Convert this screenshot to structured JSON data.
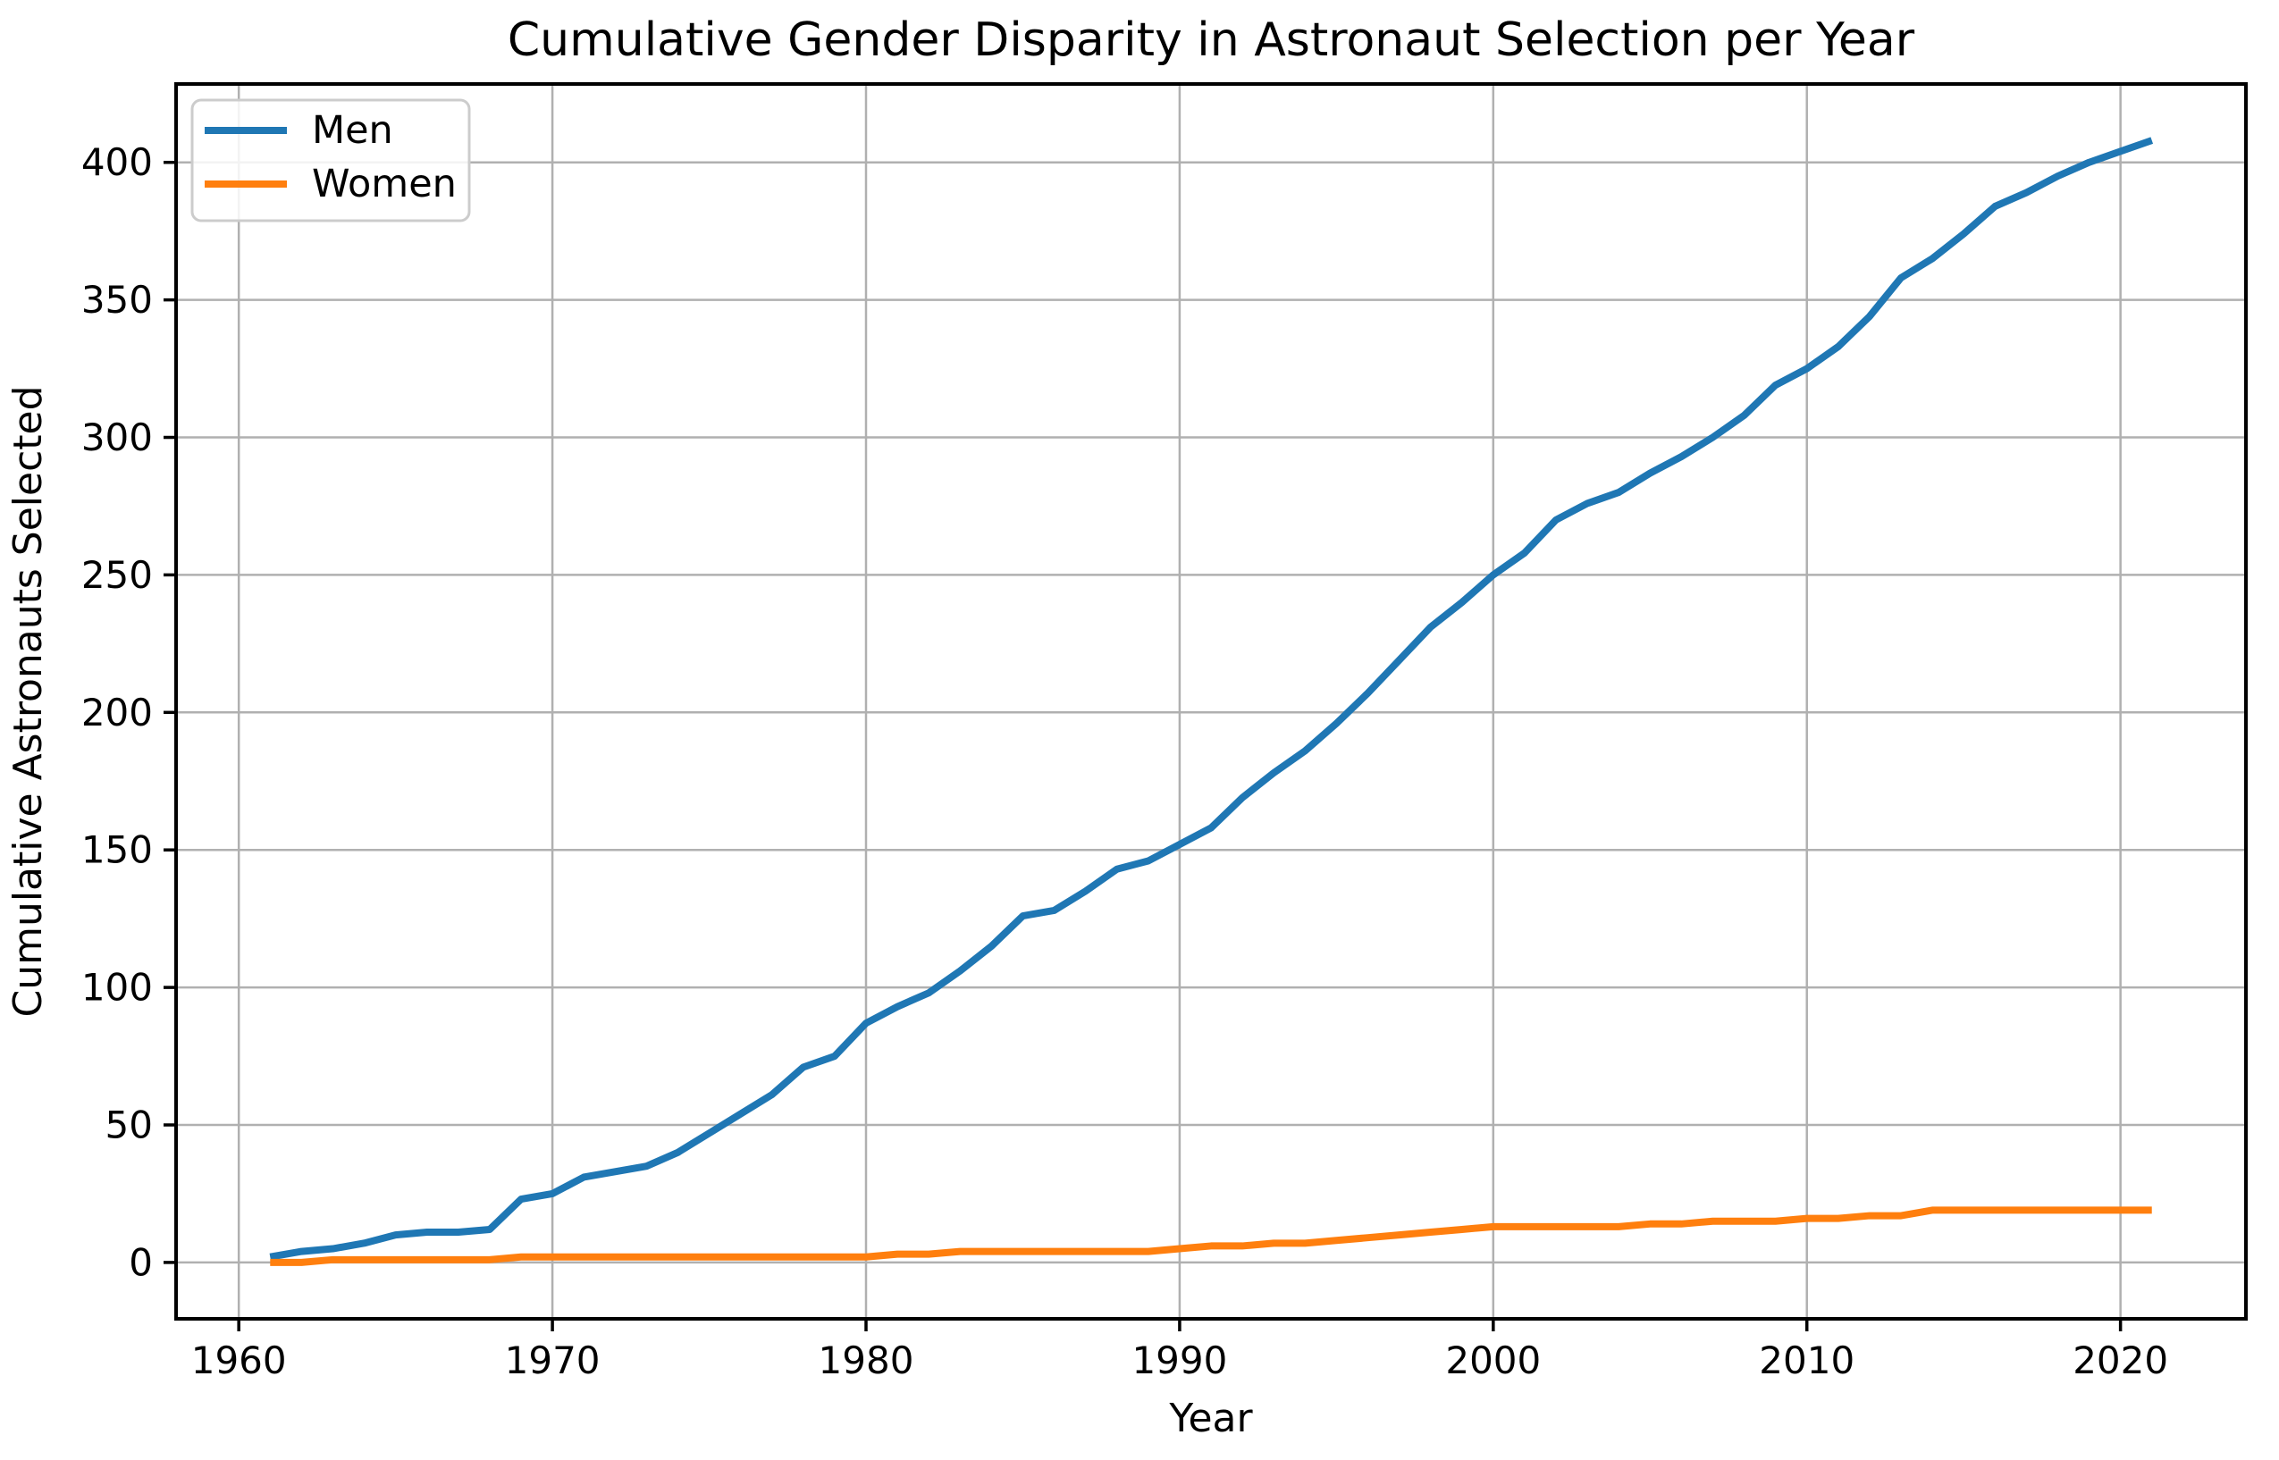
{
  "chart_data": {
    "type": "line",
    "title": "Cumulative Gender Disparity in Astronaut Selection per Year",
    "xlabel": "Year",
    "ylabel": "Cumulative Astronauts Selected",
    "grid": true,
    "grid_color": "#b0b0b0",
    "spine_color": "#000000",
    "background": "#ffffff",
    "legend_position": "upper left",
    "xlim": [
      1958,
      2024
    ],
    "ylim": [
      -20.5,
      428.5
    ],
    "xticks": [
      1960,
      1970,
      1980,
      1990,
      2000,
      2010,
      2020
    ],
    "yticks": [
      0,
      50,
      100,
      150,
      200,
      250,
      300,
      350,
      400
    ],
    "x": [
      1961,
      1962,
      1963,
      1964,
      1965,
      1966,
      1967,
      1968,
      1969,
      1970,
      1971,
      1972,
      1973,
      1974,
      1975,
      1976,
      1977,
      1978,
      1979,
      1980,
      1981,
      1982,
      1983,
      1984,
      1985,
      1986,
      1987,
      1988,
      1989,
      1990,
      1991,
      1992,
      1993,
      1994,
      1995,
      1996,
      1997,
      1998,
      1999,
      2000,
      2001,
      2002,
      2003,
      2004,
      2005,
      2006,
      2007,
      2008,
      2009,
      2010,
      2011,
      2012,
      2013,
      2014,
      2015,
      2016,
      2017,
      2018,
      2019,
      2020,
      2021
    ],
    "series": [
      {
        "name": "Men",
        "color": "#1f77b4",
        "values": [
          2,
          4,
          5,
          7,
          10,
          11,
          11,
          12,
          23,
          25,
          31,
          33,
          35,
          40,
          47,
          54,
          61,
          71,
          75,
          87,
          93,
          98,
          106,
          115,
          126,
          128,
          135,
          143,
          146,
          152,
          158,
          169,
          178,
          186,
          196,
          207,
          219,
          231,
          240,
          250,
          258,
          270,
          276,
          280,
          287,
          293,
          300,
          308,
          319,
          325,
          333,
          344,
          358,
          365,
          374,
          384,
          389,
          395,
          400,
          404,
          408
        ]
      },
      {
        "name": "Women",
        "color": "#ff7f0e",
        "values": [
          0,
          0,
          1,
          1,
          1,
          1,
          1,
          1,
          2,
          2,
          2,
          2,
          2,
          2,
          2,
          2,
          2,
          2,
          2,
          2,
          3,
          3,
          4,
          4,
          4,
          4,
          4,
          4,
          4,
          5,
          6,
          6,
          7,
          7,
          8,
          9,
          10,
          11,
          12,
          13,
          13,
          13,
          13,
          13,
          14,
          14,
          15,
          15,
          15,
          16,
          16,
          17,
          17,
          19,
          19,
          19,
          19,
          19,
          19,
          19,
          19
        ]
      }
    ]
  }
}
